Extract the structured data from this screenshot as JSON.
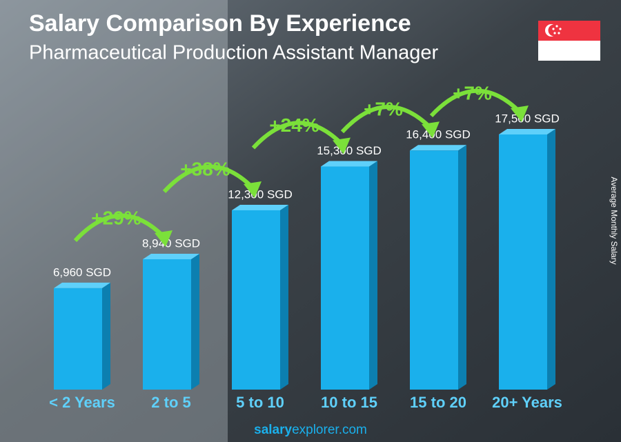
{
  "chart_data": {
    "type": "bar",
    "title": "Salary Comparison By Experience",
    "subtitle": "Pharmaceutical Production Assistant Manager",
    "y_label": "Average Monthly Salary",
    "categories": [
      "< 2 Years",
      "2 to 5",
      "5 to 10",
      "10 to 15",
      "15 to 20",
      "20+ Years"
    ],
    "values": [
      6960,
      8940,
      12300,
      15300,
      16400,
      17500
    ],
    "value_labels": [
      "6,960 SGD",
      "8,940 SGD",
      "12,300 SGD",
      "15,300 SGD",
      "16,400 SGD",
      "17,500 SGD"
    ],
    "changes": [
      {
        "value": 29,
        "label": "+29%"
      },
      {
        "value": 38,
        "label": "+38%"
      },
      {
        "value": 24,
        "label": "+24%"
      },
      {
        "value": 7,
        "label": "+7%"
      },
      {
        "value": 7,
        "label": "+7%"
      }
    ],
    "color": "#1ab0ec",
    "change_color": "#7be03a"
  },
  "footer": {
    "brand": "salary",
    "brand2": "explorer",
    "domain": ".com"
  }
}
